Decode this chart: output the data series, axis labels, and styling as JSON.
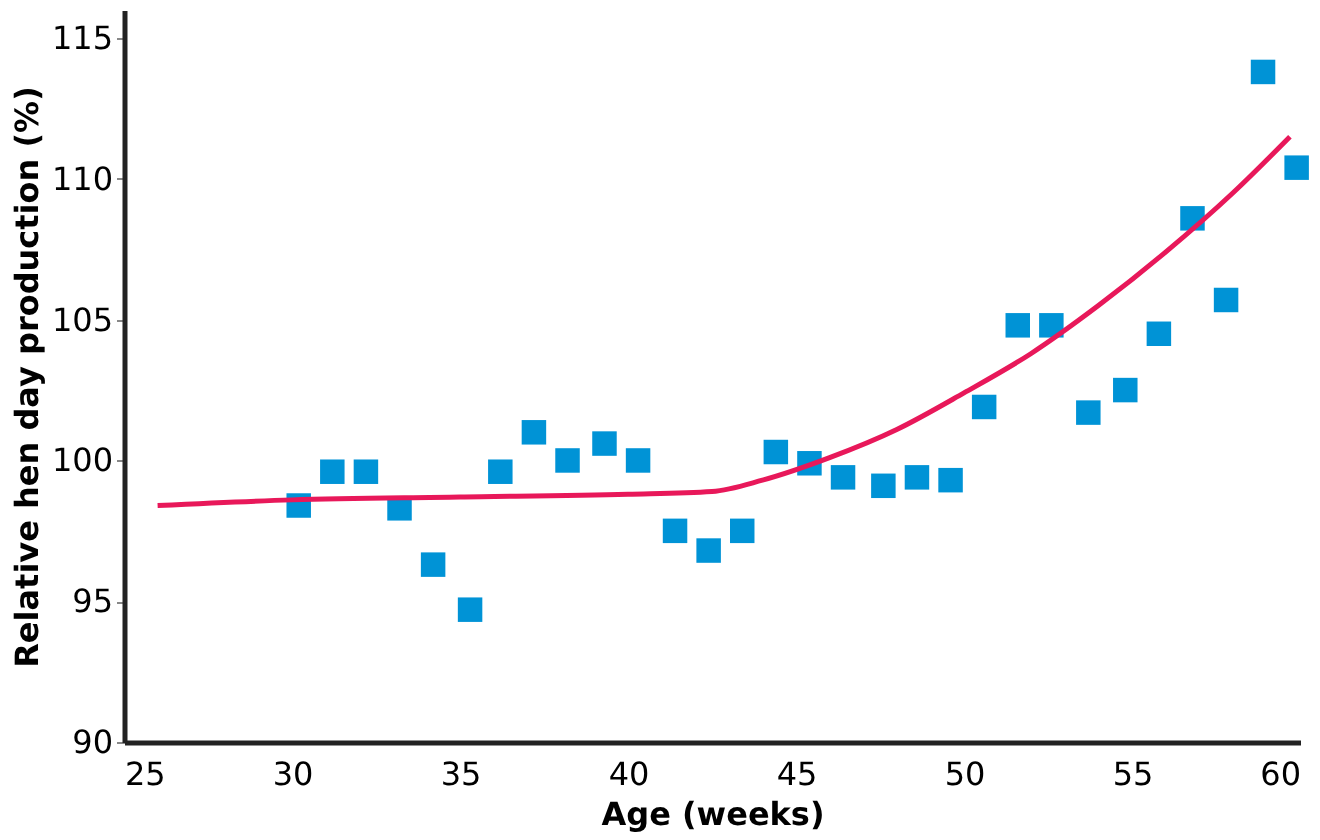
{
  "chart_data": {
    "type": "scatter",
    "xlabel": "Age (weeks)",
    "ylabel": "Relative hen day production (%)",
    "xlim": [
      25,
      60
    ],
    "xticks": [
      25,
      30,
      35,
      40,
      45,
      50,
      55,
      60
    ],
    "ylim": [
      90,
      116
    ],
    "yticks": [
      90,
      95,
      100,
      105,
      110,
      115
    ],
    "grid": false,
    "series": [
      {
        "color": "#0093d6",
        "marker": "square",
        "x": [
          30.2,
          31.2,
          32.2,
          33.2,
          34.2,
          35.3,
          36.2,
          37.2,
          38.2,
          39.3,
          40.3,
          41.4,
          42.4,
          43.4,
          44.4,
          45.4,
          46.4,
          47.6,
          48.6,
          49.6,
          50.6,
          51.6,
          52.6,
          53.7,
          54.8,
          55.8,
          56.8,
          57.8,
          58.9,
          59.9
        ],
        "values": [
          98.4,
          99.6,
          99.6,
          98.3,
          96.3,
          94.7,
          99.6,
          101.0,
          100.0,
          100.6,
          100.0,
          97.5,
          96.8,
          97.5,
          100.3,
          99.9,
          99.4,
          99.1,
          99.4,
          99.3,
          101.9,
          104.8,
          104.8,
          101.7,
          102.5,
          104.5,
          108.6,
          105.7,
          113.8,
          110.4
        ]
      },
      {
        "type": "line",
        "color": "#e8185a",
        "marker": "none",
        "line_style": "solid",
        "x": [
          26,
          30,
          35,
          40,
          42.5,
          44,
          46,
          48,
          50,
          52,
          54,
          56,
          58,
          59.7
        ],
        "values": [
          98.4,
          98.6,
          98.7,
          98.8,
          98.9,
          99.3,
          100.1,
          101.1,
          102.4,
          103.8,
          105.5,
          107.4,
          109.5,
          111.5
        ]
      }
    ]
  }
}
